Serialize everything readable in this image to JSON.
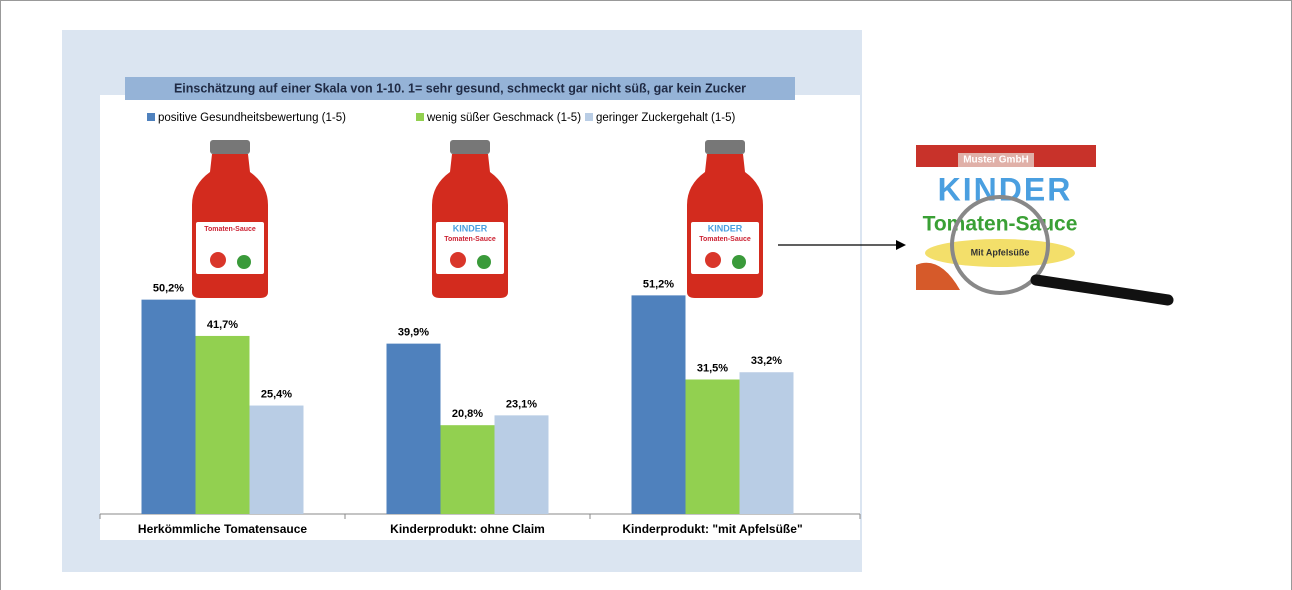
{
  "chart_data": {
    "type": "bar",
    "title": "Einschätzung auf einer Skala von 1-10. 1= sehr gesund, schmeckt gar nicht süß, gar kein Zucker",
    "categories": [
      "Herkömmliche Tomatensauce",
      "Kinderprodukt: ohne Claim",
      "Kinderprodukt: \"mit Apfelsüße\""
    ],
    "series": [
      {
        "name": "positive Gesundheitsbewertung (1-5)",
        "color": "#4f81bd",
        "values": [
          50.2,
          39.9,
          51.2
        ],
        "value_labels": [
          "50,2%",
          "39,9%",
          "51,2%"
        ]
      },
      {
        "name": "wenig süßer Geschmack (1-5)",
        "color": "#92d050",
        "values": [
          41.7,
          20.8,
          31.5
        ],
        "value_labels": [
          "41,7%",
          "20,8%",
          "31,5%"
        ]
      },
      {
        "name": "geringer Zuckergehalt (1-5)",
        "color": "#b9cde5",
        "values": [
          25.4,
          23.1,
          33.2
        ],
        "value_labels": [
          "25,4%",
          "23,1%",
          "33,2%"
        ]
      }
    ]
  },
  "jars": [
    [
      "Tomaten-Sauce"
    ],
    [
      "KINDER",
      "Tomaten-Sauce"
    ],
    [
      "KINDER",
      "Tomaten-Sauce"
    ]
  ],
  "zoom_label": {
    "brand": "Muster GmbH",
    "product": "KINDER",
    "name": "Tomaten-Sauce",
    "claim": "Mit Apfelsüße"
  }
}
